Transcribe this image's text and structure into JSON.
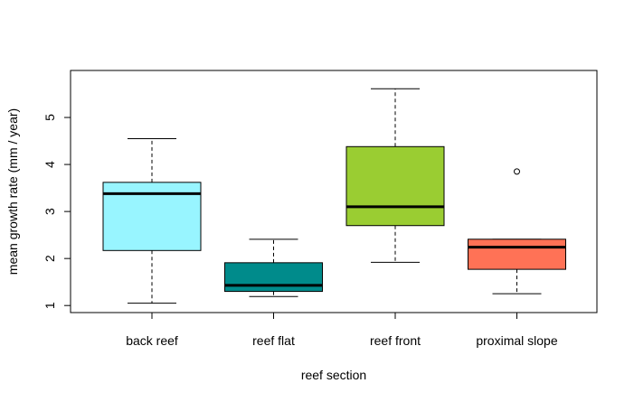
{
  "chart_data": {
    "type": "boxplot",
    "title": "",
    "xlabel": "reef section",
    "ylabel": "mean growth rate (mm / year)",
    "ylim": [
      0.85,
      6.0
    ],
    "yticks": [
      1,
      2,
      3,
      4,
      5
    ],
    "categories": [
      "back reef",
      "reef flat",
      "reef front",
      "proximal slope"
    ],
    "colors": [
      "#98F5FF",
      "#008B8B",
      "#9ACD32",
      "#FF7256"
    ],
    "boxes": [
      {
        "category": "back reef",
        "min": 1.05,
        "q1": 2.17,
        "median": 3.38,
        "q3": 3.62,
        "max": 4.55,
        "outliers": []
      },
      {
        "category": "reef flat",
        "min": 1.19,
        "q1": 1.3,
        "median": 1.43,
        "q3": 1.91,
        "max": 2.41,
        "outliers": []
      },
      {
        "category": "reef front",
        "min": 1.92,
        "q1": 2.7,
        "median": 3.1,
        "q3": 4.38,
        "max": 5.61,
        "outliers": []
      },
      {
        "category": "proximal slope",
        "min": 1.25,
        "q1": 1.77,
        "median": 2.24,
        "q3": 2.41,
        "max": 2.41,
        "outliers": [
          3.85
        ]
      }
    ],
    "grid": false,
    "legend": "none"
  }
}
